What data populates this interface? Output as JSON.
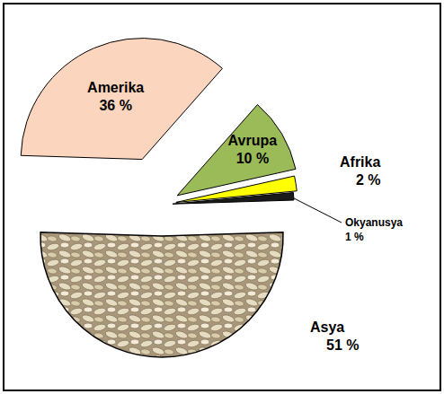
{
  "chart_data": {
    "type": "pie",
    "categories": [
      "Asya",
      "Amerika",
      "Avrupa",
      "Afrika",
      "Okyanusya"
    ],
    "values": [
      51,
      36,
      10,
      2,
      1
    ],
    "value_labels": [
      "51 %",
      "36 %",
      "10 %",
      "2 %",
      "1 %"
    ],
    "colors": [
      "#e6dcc2",
      "#fbd5bd",
      "#9bbb59",
      "#ffff00",
      "#1a1a1a"
    ],
    "data_labels": true
  }
}
